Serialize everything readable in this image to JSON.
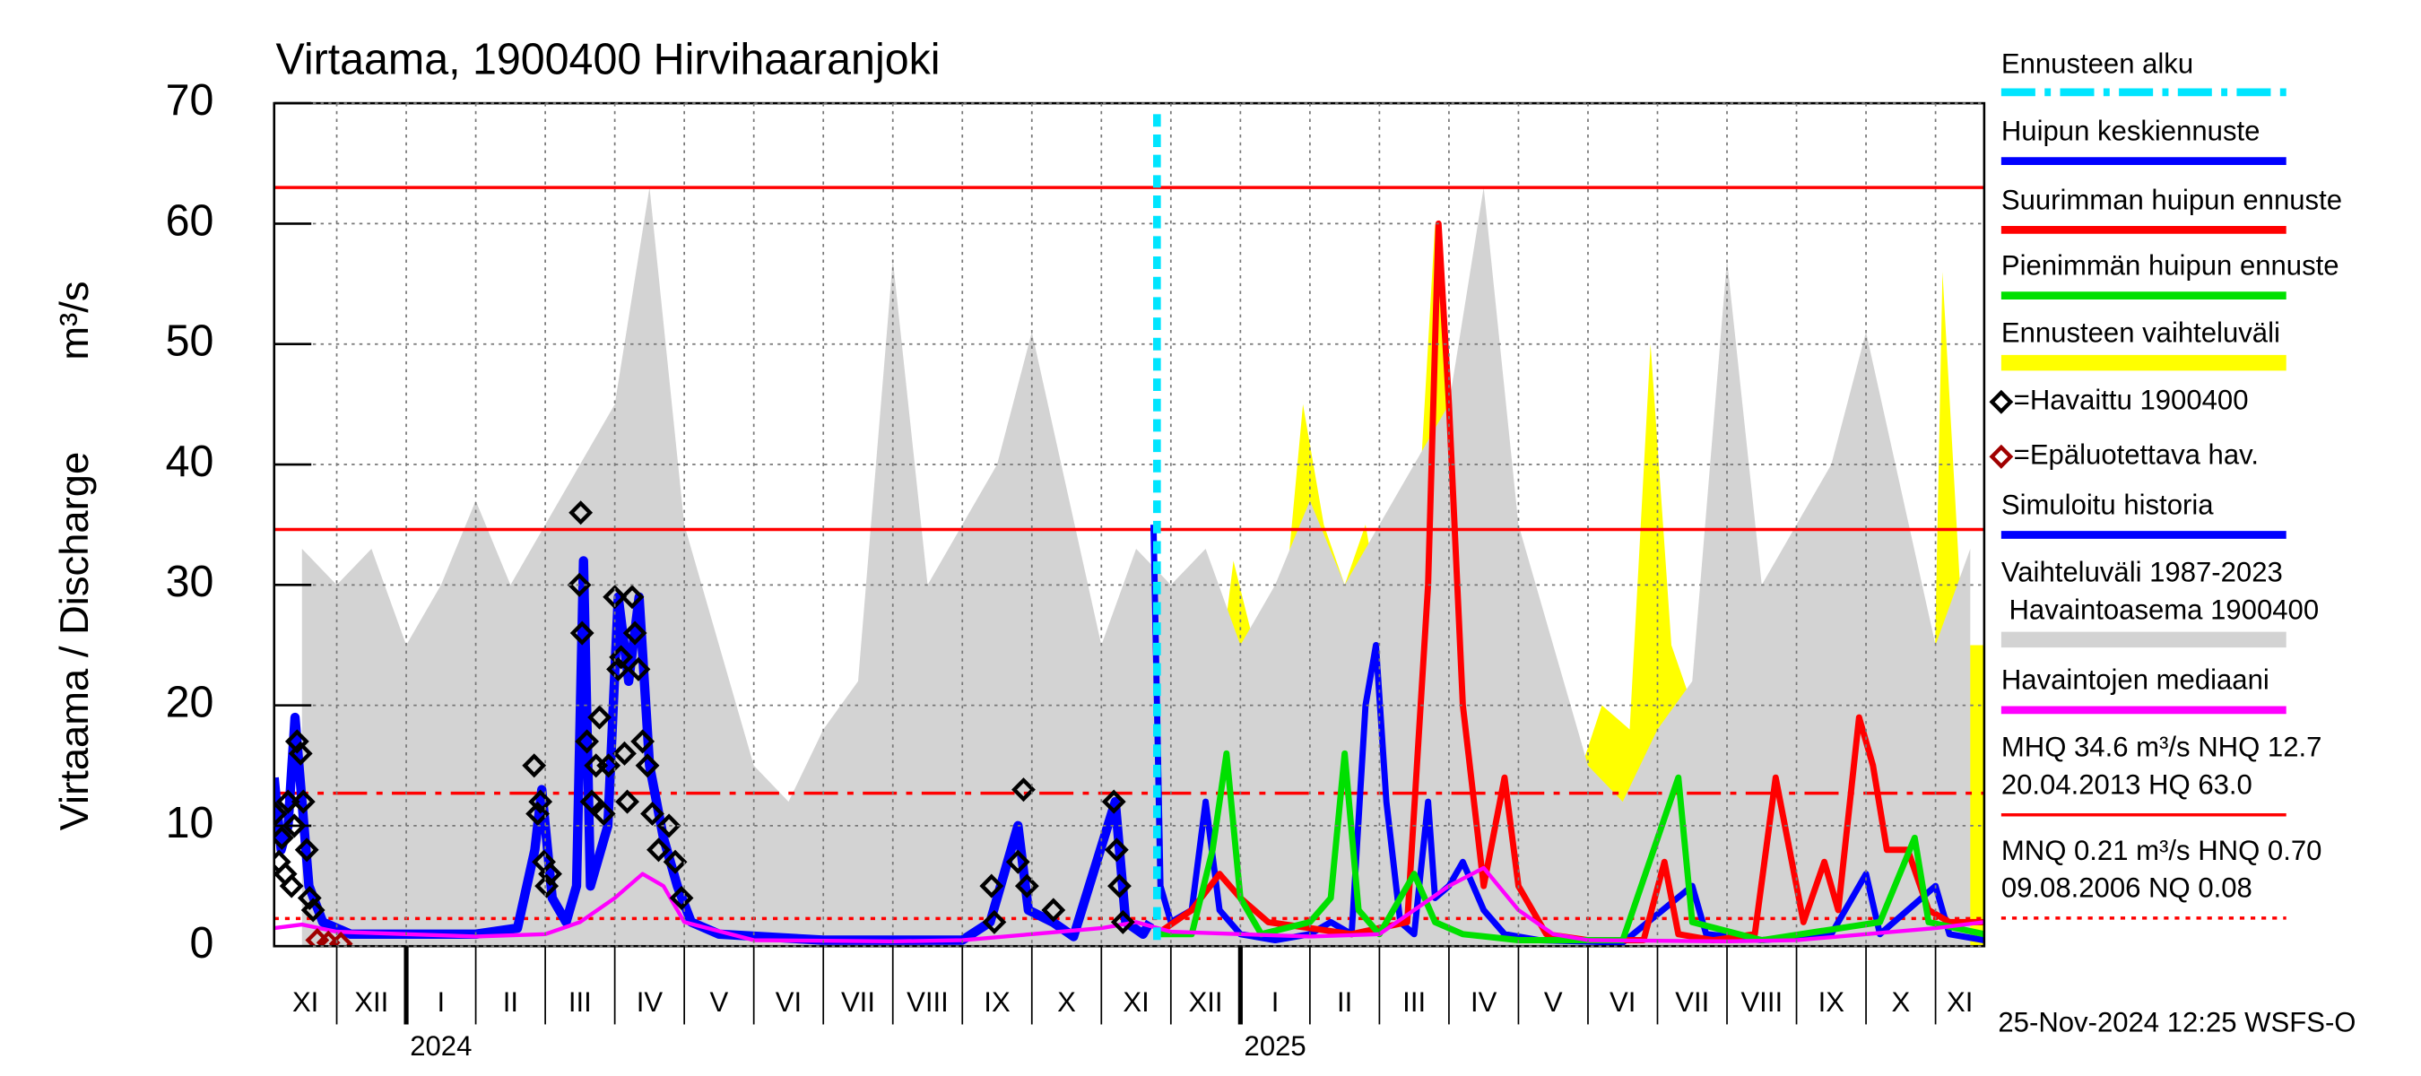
{
  "chart_data": {
    "type": "line",
    "title": "Virtaama, 1900400 Hirvihaaranjoki",
    "y_label": "Virtaama / Discharge",
    "y_unit": "m³/s",
    "footer": "25-Nov-2024 12:25 WSFS-O",
    "ylim": [
      0,
      70
    ],
    "yticks": [
      0,
      10,
      20,
      30,
      40,
      50,
      60,
      70
    ],
    "xlim": [
      0.1,
      24.7
    ],
    "grid": true,
    "xticks": [
      {
        "value": 0,
        "label": "XI"
      },
      {
        "value": 1,
        "label": "XII"
      },
      {
        "value": 2,
        "label": "I"
      },
      {
        "value": 3,
        "label": "II"
      },
      {
        "value": 4,
        "label": "III"
      },
      {
        "value": 5,
        "label": "IV"
      },
      {
        "value": 6,
        "label": "V"
      },
      {
        "value": 7,
        "label": "VI"
      },
      {
        "value": 8,
        "label": "VII"
      },
      {
        "value": 9,
        "label": "VIII"
      },
      {
        "value": 10,
        "label": "IX"
      },
      {
        "value": 11,
        "label": "X"
      },
      {
        "value": 12,
        "label": "XI"
      },
      {
        "value": 13,
        "label": "XII"
      },
      {
        "value": 14,
        "label": "I"
      },
      {
        "value": 15,
        "label": "II"
      },
      {
        "value": 16,
        "label": "III"
      },
      {
        "value": 17,
        "label": "IV"
      },
      {
        "value": 18,
        "label": "V"
      },
      {
        "value": 19,
        "label": "VI"
      },
      {
        "value": 20,
        "label": "VII"
      },
      {
        "value": 21,
        "label": "VIII"
      },
      {
        "value": 22,
        "label": "IX"
      },
      {
        "value": 23,
        "label": "X"
      },
      {
        "value": 24,
        "label": "XI"
      }
    ],
    "year_labels": [
      {
        "value": 2,
        "label": "2024"
      },
      {
        "value": 14,
        "label": "2025"
      }
    ],
    "forecast_start": {
      "name": "Ennusteen alku",
      "x": 12.8,
      "color": "#00e5ff"
    },
    "reference_color": "#ff0000",
    "reference_lines": [
      {
        "value": 63.0,
        "style": "solid"
      },
      {
        "value": 34.6,
        "style": "solid"
      },
      {
        "value": 12.7,
        "style": "dashed"
      },
      {
        "value": 2.3,
        "style": "dotted"
      }
    ],
    "stats": [
      {
        "lines": [
          "MHQ 34.6 m³/s NHQ 12.7",
          "20.04.2013 HQ 63.0"
        ],
        "style": "solid"
      },
      {
        "lines": [
          "MNQ 0.21 m³/s HNQ 0.70",
          "09.08.2006 NQ 0.08"
        ],
        "style": "dotted"
      }
    ],
    "series": [
      {
        "name": "Huipun keskiennuste",
        "kind": "line",
        "color": "#0000ff",
        "width": 4,
        "x": [
          12.75,
          12.85,
          13.0,
          13.3,
          13.5,
          13.7,
          14.0,
          14.5,
          15.0,
          15.3,
          15.6,
          15.8,
          15.95,
          16.1,
          16.3,
          16.5,
          16.7,
          16.8,
          17.0,
          17.2,
          17.5,
          17.8,
          18.3,
          19.5,
          20.5,
          20.7,
          21.5,
          22.5,
          23.0,
          23.2,
          24.0,
          24.2,
          24.7
        ],
        "values": [
          35,
          5,
          2,
          3,
          12,
          3,
          1,
          0.5,
          1,
          2,
          1,
          20,
          25,
          12,
          2,
          1,
          12,
          4,
          5,
          7,
          3,
          1,
          0.5,
          0.3,
          5,
          1,
          0.5,
          1,
          6,
          1,
          5,
          1,
          0.5
        ]
      },
      {
        "name": "Suurimman huipun ennuste",
        "kind": "line",
        "color": "#ff0000",
        "width": 4,
        "x": [
          12.8,
          13.3,
          13.7,
          14.0,
          14.4,
          15.0,
          15.6,
          16.0,
          16.4,
          16.7,
          16.85,
          17.0,
          17.2,
          17.5,
          17.8,
          18.0,
          18.4,
          19.0,
          19.8,
          20.1,
          20.3,
          20.8,
          21.4,
          21.7,
          21.9,
          22.1,
          22.4,
          22.6,
          22.9,
          23.1,
          23.3,
          23.6,
          23.9,
          24.2,
          24.7
        ],
        "values": [
          1,
          3,
          6,
          4,
          2,
          1.5,
          1,
          1.5,
          2,
          30,
          60,
          45,
          20,
          5,
          14,
          5,
          1,
          0.5,
          0.5,
          7,
          1,
          0.5,
          1,
          14,
          8,
          2,
          7,
          3,
          19,
          15,
          8,
          8,
          3,
          2,
          2
        ]
      },
      {
        "name": "Pienimmän huipun ennuste",
        "kind": "line",
        "color": "#00e000",
        "width": 4,
        "x": [
          12.8,
          13.3,
          13.6,
          13.8,
          14.0,
          14.3,
          15.0,
          15.3,
          15.5,
          15.7,
          16.0,
          16.5,
          16.8,
          17.2,
          18.0,
          19.5,
          20.3,
          20.5,
          21.5,
          23.2,
          23.7,
          23.9,
          24.7
        ],
        "values": [
          1,
          1,
          8,
          16,
          4,
          1,
          2,
          4,
          16,
          3,
          1,
          6,
          2,
          1,
          0.5,
          0.5,
          14,
          2,
          0.5,
          2,
          9,
          2,
          1
        ]
      },
      {
        "name": "Ennusteen vaihteluväli",
        "kind": "area",
        "color": "#ffff00",
        "x": [
          12.8,
          13.0,
          13.3,
          13.6,
          13.9,
          14.2,
          14.5,
          14.9,
          15.2,
          15.5,
          15.8,
          16.1,
          16.4,
          16.6,
          16.8,
          17.0,
          17.3,
          17.6,
          17.9,
          18.2,
          18.5,
          18.8,
          19.2,
          19.6,
          19.9,
          20.2,
          20.5,
          20.9,
          21.3,
          21.6,
          22.0,
          22.4,
          22.8,
          23.2,
          23.6,
          23.95,
          24.1,
          24.4,
          24.7
        ],
        "values": [
          5,
          15,
          20,
          18,
          32,
          25,
          20,
          45,
          35,
          30,
          35,
          25,
          20,
          40,
          60,
          42,
          30,
          25,
          20,
          15,
          10,
          13,
          20,
          18,
          50,
          25,
          20,
          30,
          25,
          22,
          18,
          20,
          25,
          20,
          25,
          12,
          56,
          25,
          25
        ]
      },
      {
        "name": "=Havaittu 1900400",
        "kind": "points",
        "color": "#000000",
        "x": [
          0.12,
          0.17,
          0.21,
          0.26,
          0.3,
          0.35,
          0.39,
          0.43,
          0.48,
          0.52,
          0.57,
          0.61,
          0.66,
          3.84,
          3.89,
          3.93,
          3.98,
          4.02,
          4.07,
          4.49,
          4.51,
          4.53,
          4.6,
          4.67,
          4.73,
          4.78,
          4.84,
          4.91,
          5.0,
          5.05,
          5.09,
          5.14,
          5.18,
          5.25,
          5.29,
          5.34,
          5.4,
          5.47,
          5.54,
          5.63,
          5.78,
          5.87,
          5.96,
          10.42,
          10.46,
          10.8,
          10.88,
          10.93,
          11.31,
          12.18,
          12.22,
          12.26,
          12.31
        ],
        "values": [
          11,
          7,
          9,
          6,
          12,
          5,
          10,
          17,
          16,
          12,
          8,
          4,
          3,
          15,
          11,
          12,
          7,
          5,
          6,
          30,
          36,
          26,
          17,
          12,
          15,
          19,
          11,
          15,
          29,
          23,
          24,
          16,
          12,
          29,
          26,
          23,
          17,
          15,
          11,
          8,
          10,
          7,
          4,
          5,
          2,
          7,
          13,
          5,
          3,
          12,
          8,
          5,
          2
        ]
      },
      {
        "name": "=Epäluotettava hav.",
        "kind": "points",
        "color": "#a00000",
        "x": [
          0.72,
          0.88,
          1.06
        ],
        "values": [
          0.5,
          0.3,
          0.2
        ]
      },
      {
        "name": "Simuloitu historia",
        "kind": "line",
        "color": "#0000ff",
        "width": 6,
        "x": [
          0.1,
          0.2,
          0.3,
          0.4,
          0.5,
          0.6,
          0.8,
          1.2,
          2,
          3,
          3.6,
          3.85,
          3.95,
          4.1,
          4.3,
          4.45,
          4.55,
          4.65,
          4.9,
          5.05,
          5.2,
          5.35,
          5.5,
          5.7,
          5.9,
          6.1,
          6.5,
          8,
          10,
          10.4,
          10.8,
          10.95,
          11.3,
          11.6,
          12.2,
          12.35,
          12.6,
          12.7
        ],
        "values": [
          14,
          8,
          10,
          19,
          12,
          5,
          2,
          1,
          1,
          1,
          1.5,
          8,
          13,
          4,
          2,
          5,
          32,
          5,
          10,
          29,
          22,
          29,
          15,
          9,
          5,
          2,
          1,
          0.5,
          0.5,
          2,
          10,
          3,
          2,
          0.8,
          12,
          2,
          1,
          2
        ]
      },
      {
        "name": [
          "Vaihteluväli 1987-2023",
          " Havaintoasema 1900400"
        ],
        "kind": "area",
        "color": "#d3d3d3",
        "x": [
          0.5,
          1,
          1.5,
          2,
          2.5,
          3,
          3.5,
          4,
          4.5,
          5,
          5.5,
          6,
          6.5,
          7,
          7.5,
          8,
          8.5,
          9,
          9.5,
          10,
          10.5,
          11,
          11.5,
          12,
          12.5,
          13,
          13.5,
          14,
          14.5,
          15,
          15.5,
          16,
          16.5,
          17,
          17.5,
          18,
          18.5,
          19,
          19.5,
          20,
          20.5,
          21,
          21.5,
          22,
          22.5,
          23,
          23.5,
          24,
          24.5
        ],
        "values": [
          33,
          30,
          33,
          25,
          30,
          37,
          30,
          35,
          40,
          45,
          63,
          35,
          25,
          15,
          12,
          18,
          22,
          57,
          30,
          35,
          40,
          51,
          38,
          25,
          33,
          30,
          33,
          25,
          30,
          37,
          30,
          35,
          40,
          45,
          63,
          35,
          25,
          15,
          12,
          18,
          22,
          57,
          30,
          35,
          40,
          51,
          38,
          25,
          33
        ]
      },
      {
        "name": "Havaintojen mediaani",
        "kind": "line",
        "color": "#ff00ff",
        "width": 2.5,
        "x": [
          0.1,
          0.5,
          1,
          2,
          3,
          4,
          4.5,
          5,
          5.4,
          5.7,
          6,
          7,
          9,
          10,
          11,
          12,
          12.5,
          13,
          14,
          15,
          16,
          16.5,
          17,
          17.5,
          18,
          18.5,
          19,
          21,
          22,
          23,
          24,
          24.7
        ],
        "values": [
          1.5,
          1.8,
          1.2,
          1,
          0.8,
          1,
          2,
          4,
          6,
          5,
          2,
          0.5,
          0.4,
          0.5,
          1,
          1.5,
          2,
          1.2,
          1,
          0.8,
          1,
          3,
          5,
          6.5,
          3,
          1,
          0.5,
          0.4,
          0.5,
          1,
          1.5,
          2
        ]
      }
    ]
  }
}
